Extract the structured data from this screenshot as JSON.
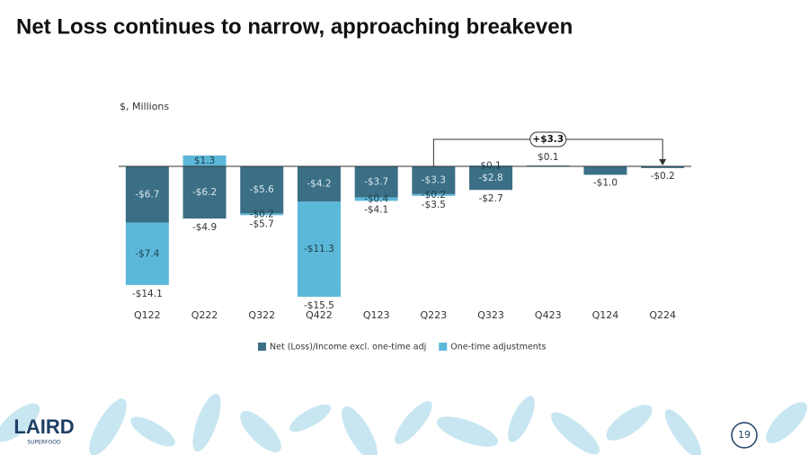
{
  "title": "Net Loss continues to narrow, approaching breakeven",
  "logo": {
    "name": "LAIRD",
    "tagline": "SUPERFOOD"
  },
  "page_number": "19",
  "chart_data": {
    "type": "bar",
    "stacked": true,
    "subtitle": "$, Millions",
    "categories": [
      "Q122",
      "Q222",
      "Q322",
      "Q422",
      "Q123",
      "Q223",
      "Q323",
      "Q423",
      "Q124",
      "Q224"
    ],
    "series": [
      {
        "name": "Net (Loss)/Income excl. one-time adj",
        "color": "#3b6f86",
        "values": [
          -6.7,
          -6.2,
          -5.6,
          -4.2,
          -3.7,
          -3.3,
          -2.8,
          0.1,
          -1.0,
          -0.2
        ],
        "value_labels": [
          "-$6.7",
          "-$6.2",
          "-$5.6",
          "-$4.2",
          "-$3.7",
          "-$3.3",
          "-$2.8",
          "$0.1",
          "-$1.0",
          "-$0.2"
        ]
      },
      {
        "name": "One-time adjustments",
        "color": "#5cb8d9",
        "values": [
          -7.4,
          1.3,
          -0.2,
          -11.3,
          -0.4,
          -0.2,
          0.1,
          null,
          null,
          null
        ],
        "value_labels": [
          "-$7.4",
          "$1.3",
          "-$0.2",
          "-$11.3",
          "-$0.4",
          "-$0.2",
          "$0.1",
          null,
          null,
          null
        ]
      }
    ],
    "totals": {
      "values": [
        -14.1,
        -4.9,
        -5.7,
        -15.5,
        -4.1,
        -3.5,
        -2.7,
        null,
        null,
        null
      ],
      "value_labels": [
        "-$14.1",
        "-$4.9",
        "-$5.7",
        "-$15.5",
        "-$4.1",
        "-$3.5",
        "-$2.7",
        null,
        null,
        null
      ]
    },
    "annotation": "+$3.3",
    "ylim": [
      -16,
      2
    ],
    "legend": "bottom"
  }
}
